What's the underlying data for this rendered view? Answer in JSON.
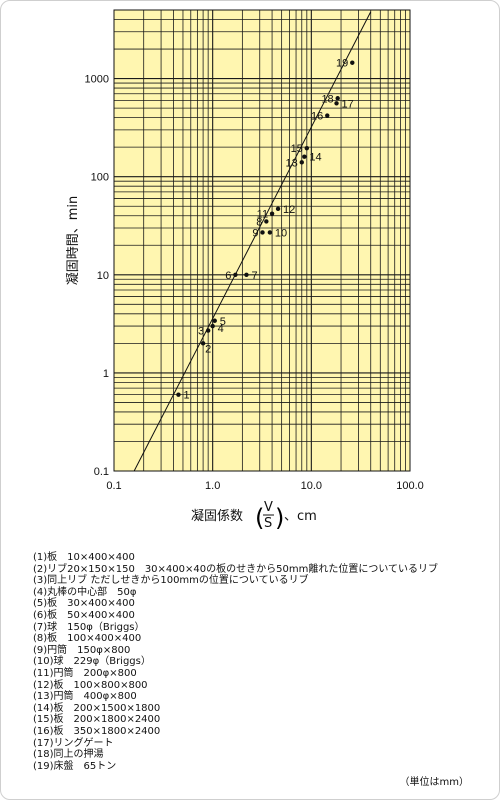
{
  "chart_data": {
    "type": "scatter",
    "xlabel": "凝固係数",
    "xlabel_ratio": {
      "numerator": "V",
      "denominator": "S"
    },
    "xlabel_unit": "、cm",
    "ylabel": "凝固時間、min",
    "x_scale": "log",
    "y_scale": "log",
    "xlim": [
      0.1,
      100
    ],
    "ylim": [
      0.1,
      5000
    ],
    "x_ticks": [
      {
        "value": 0.1,
        "label": "0.1"
      },
      {
        "value": 1,
        "label": "1.0"
      },
      {
        "value": 10,
        "label": "10.0"
      },
      {
        "value": 100,
        "label": "100.0"
      }
    ],
    "y_ticks": [
      {
        "value": 0.1,
        "label": "0.1"
      },
      {
        "value": 1,
        "label": "1"
      },
      {
        "value": 10,
        "label": "10"
      },
      {
        "value": 100,
        "label": "100"
      },
      {
        "value": 1000,
        "label": "1000"
      }
    ],
    "grid": true,
    "background_color": "#fff6b0",
    "grid_color": "#1a1a1a",
    "points": [
      {
        "label": "1",
        "x": 0.45,
        "y": 0.6
      },
      {
        "label": "2",
        "x": 0.8,
        "y": 2.0
      },
      {
        "label": "3",
        "x": 0.9,
        "y": 2.7
      },
      {
        "label": "4",
        "x": 1.0,
        "y": 3.0
      },
      {
        "label": "5",
        "x": 1.05,
        "y": 3.4
      },
      {
        "label": "6",
        "x": 1.7,
        "y": 10
      },
      {
        "label": "7",
        "x": 2.2,
        "y": 10
      },
      {
        "label": "8",
        "x": 3.5,
        "y": 35
      },
      {
        "label": "9",
        "x": 3.2,
        "y": 27
      },
      {
        "label": "10",
        "x": 3.8,
        "y": 27
      },
      {
        "label": "11",
        "x": 4.0,
        "y": 42
      },
      {
        "label": "12",
        "x": 4.6,
        "y": 47
      },
      {
        "label": "13",
        "x": 8.0,
        "y": 140
      },
      {
        "label": "14",
        "x": 8.5,
        "y": 160
      },
      {
        "label": "15",
        "x": 9.0,
        "y": 195
      },
      {
        "label": "16",
        "x": 14.5,
        "y": 420
      },
      {
        "label": "17",
        "x": 18,
        "y": 560
      },
      {
        "label": "18",
        "x": 18.5,
        "y": 630
      },
      {
        "label": "19",
        "x": 26,
        "y": 1450
      }
    ],
    "fit_line": {
      "x": [
        0.16,
        40
      ],
      "y": [
        0.1,
        4800
      ]
    }
  },
  "legend": [
    "(1)板　10×400×400",
    "(2)リブ20×150×150　30×400×40の板のせきから50mm離れた位置についているリブ",
    "(3)同上リブ ただしせきから100mmの位置についているリブ",
    "(4)丸棒の中心部　50φ",
    "(5)板　30×400×400",
    "(6)板　50×400×400",
    "(7)球　150φ（Briggs）",
    "(8)板　100×400×400",
    "(9)円筒　150φ×800",
    "(10)球　229φ（Briggs）",
    "(11)円筒　200φ×800",
    "(12)板　100×800×800",
    "(13)円筒　400φ×800",
    "(14)板　200×1500×1800",
    "(15)板　200×1800×2400",
    "(16)板　350×1800×2400",
    "(17)リングゲート",
    "(18)同上の押湯",
    "(19)床盤　65トン"
  ],
  "unit_note": "（単位はmm）"
}
